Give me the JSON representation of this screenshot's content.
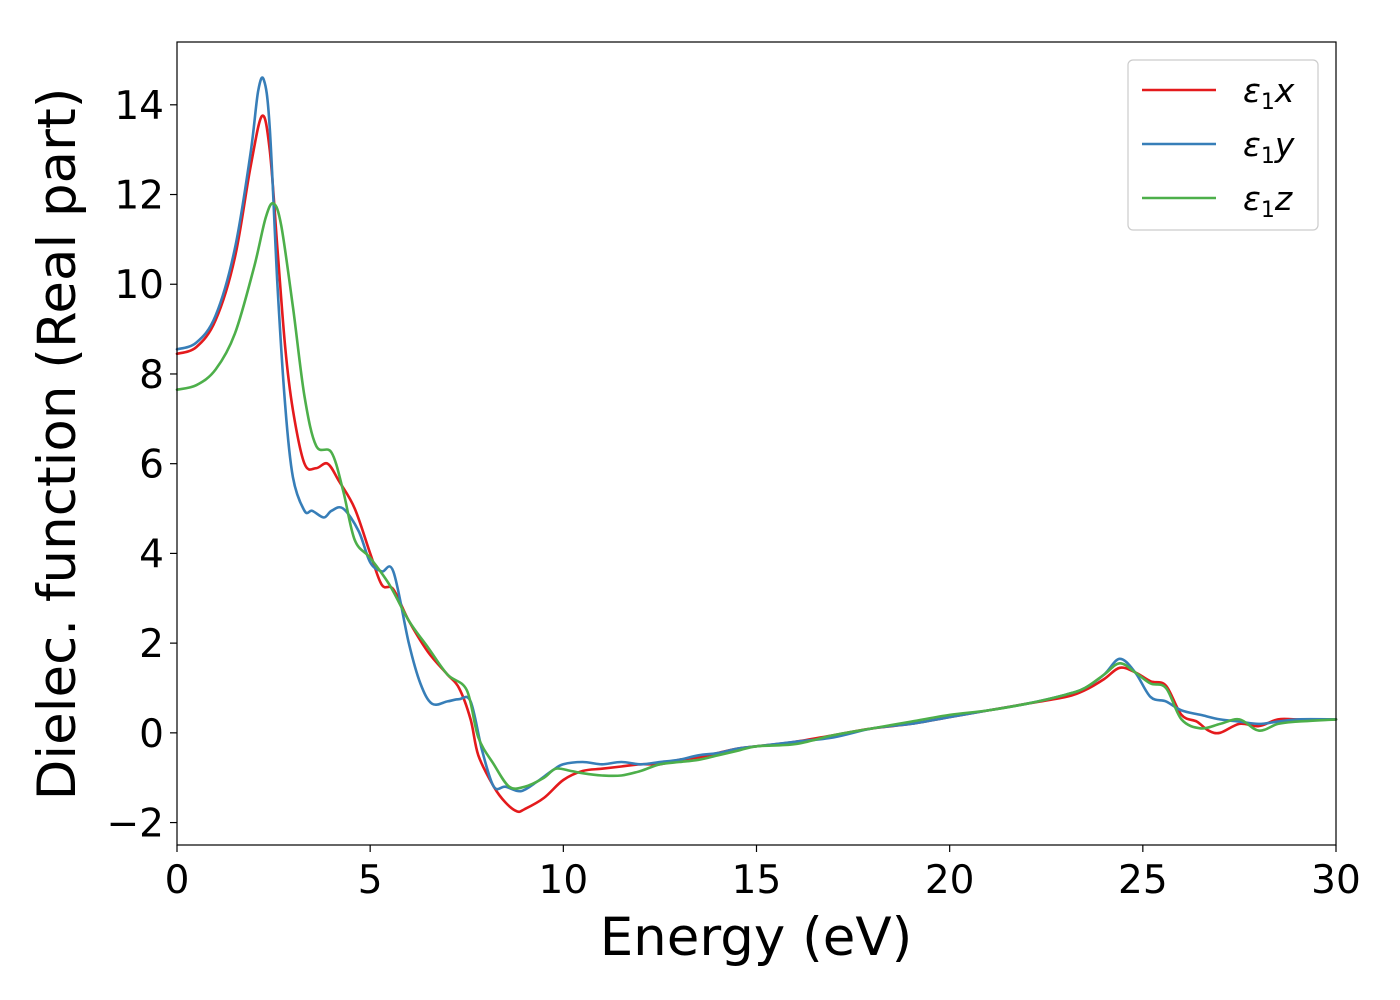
{
  "chart_data": {
    "type": "line",
    "xlabel": "Energy (eV)",
    "ylabel": "Dielec. function (Real part)",
    "xlim": [
      0,
      30
    ],
    "ylim": [
      -2.5,
      15.4
    ],
    "xticks": [
      0,
      5,
      10,
      15,
      20,
      25,
      30
    ],
    "xtick_labels": [
      "0",
      "5",
      "10",
      "15",
      "20",
      "25",
      "30"
    ],
    "yticks": [
      -2,
      0,
      2,
      4,
      6,
      8,
      10,
      12,
      14
    ],
    "ytick_labels": [
      "−2",
      "0",
      "2",
      "4",
      "6",
      "8",
      "10",
      "12",
      "14"
    ],
    "grid": false,
    "legend_position": "top-right",
    "series": [
      {
        "name": "ε₁x",
        "legend_base": "ε",
        "legend_sub": "1",
        "legend_suffix": "x",
        "color": "#e41a1c",
        "points": [
          [
            0,
            8.45
          ],
          [
            0.5,
            8.6
          ],
          [
            1.0,
            9.2
          ],
          [
            1.5,
            10.6
          ],
          [
            1.9,
            12.6
          ],
          [
            2.2,
            13.75
          ],
          [
            2.4,
            13.0
          ],
          [
            2.6,
            10.8
          ],
          [
            2.8,
            8.6
          ],
          [
            3.0,
            7.2
          ],
          [
            3.3,
            6.0
          ],
          [
            3.6,
            5.9
          ],
          [
            3.9,
            6.0
          ],
          [
            4.2,
            5.6
          ],
          [
            4.6,
            5.0
          ],
          [
            5.0,
            4.0
          ],
          [
            5.3,
            3.3
          ],
          [
            5.6,
            3.2
          ],
          [
            6.0,
            2.5
          ],
          [
            6.5,
            1.8
          ],
          [
            7.0,
            1.3
          ],
          [
            7.3,
            1.0
          ],
          [
            7.6,
            0.3
          ],
          [
            7.8,
            -0.5
          ],
          [
            8.2,
            -1.2
          ],
          [
            8.5,
            -1.55
          ],
          [
            8.8,
            -1.75
          ],
          [
            9.0,
            -1.7
          ],
          [
            9.5,
            -1.45
          ],
          [
            10.0,
            -1.05
          ],
          [
            10.5,
            -0.85
          ],
          [
            11.0,
            -0.8
          ],
          [
            11.5,
            -0.75
          ],
          [
            12.0,
            -0.7
          ],
          [
            12.5,
            -0.7
          ],
          [
            13.0,
            -0.6
          ],
          [
            13.5,
            -0.55
          ],
          [
            14.0,
            -0.45
          ],
          [
            14.5,
            -0.35
          ],
          [
            15.0,
            -0.3
          ],
          [
            16.0,
            -0.2
          ],
          [
            17.0,
            -0.05
          ],
          [
            18.0,
            0.1
          ],
          [
            19.0,
            0.2
          ],
          [
            20.0,
            0.35
          ],
          [
            21.0,
            0.5
          ],
          [
            22.0,
            0.65
          ],
          [
            23.0,
            0.8
          ],
          [
            23.5,
            0.95
          ],
          [
            24.0,
            1.2
          ],
          [
            24.4,
            1.45
          ],
          [
            24.8,
            1.35
          ],
          [
            25.2,
            1.15
          ],
          [
            25.6,
            1.05
          ],
          [
            26.0,
            0.4
          ],
          [
            26.4,
            0.25
          ],
          [
            26.7,
            0.05
          ],
          [
            27.0,
            0.0
          ],
          [
            27.5,
            0.2
          ],
          [
            28.0,
            0.15
          ],
          [
            28.5,
            0.3
          ],
          [
            29.0,
            0.3
          ],
          [
            30.0,
            0.3
          ]
        ]
      },
      {
        "name": "ε₁y",
        "legend_base": "ε",
        "legend_sub": "1",
        "legend_suffix": "y",
        "color": "#377eb8",
        "points": [
          [
            0,
            8.55
          ],
          [
            0.5,
            8.7
          ],
          [
            1.0,
            9.3
          ],
          [
            1.5,
            10.8
          ],
          [
            1.9,
            12.9
          ],
          [
            2.1,
            14.3
          ],
          [
            2.25,
            14.55
          ],
          [
            2.4,
            13.5
          ],
          [
            2.6,
            10.0
          ],
          [
            2.8,
            7.3
          ],
          [
            3.0,
            5.7
          ],
          [
            3.3,
            4.95
          ],
          [
            3.5,
            4.95
          ],
          [
            3.8,
            4.8
          ],
          [
            4.0,
            4.95
          ],
          [
            4.3,
            5.0
          ],
          [
            4.7,
            4.5
          ],
          [
            5.0,
            3.8
          ],
          [
            5.3,
            3.6
          ],
          [
            5.6,
            3.6
          ],
          [
            6.0,
            2.0
          ],
          [
            6.3,
            1.1
          ],
          [
            6.6,
            0.65
          ],
          [
            7.0,
            0.7
          ],
          [
            7.3,
            0.75
          ],
          [
            7.6,
            0.7
          ],
          [
            7.9,
            -0.4
          ],
          [
            8.2,
            -1.2
          ],
          [
            8.5,
            -1.2
          ],
          [
            8.9,
            -1.3
          ],
          [
            9.3,
            -1.1
          ],
          [
            9.7,
            -0.85
          ],
          [
            10.0,
            -0.7
          ],
          [
            10.5,
            -0.65
          ],
          [
            11.0,
            -0.7
          ],
          [
            11.5,
            -0.65
          ],
          [
            12.0,
            -0.7
          ],
          [
            12.5,
            -0.65
          ],
          [
            13.0,
            -0.6
          ],
          [
            13.5,
            -0.5
          ],
          [
            14.0,
            -0.45
          ],
          [
            14.5,
            -0.35
          ],
          [
            15.0,
            -0.3
          ],
          [
            16.0,
            -0.2
          ],
          [
            17.0,
            -0.1
          ],
          [
            18.0,
            0.1
          ],
          [
            19.0,
            0.2
          ],
          [
            20.0,
            0.35
          ],
          [
            21.0,
            0.5
          ],
          [
            22.0,
            0.65
          ],
          [
            23.0,
            0.85
          ],
          [
            23.5,
            1.0
          ],
          [
            24.0,
            1.3
          ],
          [
            24.4,
            1.65
          ],
          [
            24.8,
            1.35
          ],
          [
            25.2,
            0.8
          ],
          [
            25.6,
            0.7
          ],
          [
            26.0,
            0.5
          ],
          [
            26.5,
            0.4
          ],
          [
            27.0,
            0.3
          ],
          [
            27.5,
            0.25
          ],
          [
            28.0,
            0.2
          ],
          [
            28.5,
            0.25
          ],
          [
            29.0,
            0.3
          ],
          [
            30.0,
            0.3
          ]
        ]
      },
      {
        "name": "ε₁z",
        "legend_base": "ε",
        "legend_sub": "1",
        "legend_suffix": "z",
        "color": "#4daf4a",
        "points": [
          [
            0,
            7.65
          ],
          [
            0.5,
            7.75
          ],
          [
            1.0,
            8.1
          ],
          [
            1.5,
            8.9
          ],
          [
            2.0,
            10.4
          ],
          [
            2.3,
            11.5
          ],
          [
            2.5,
            11.8
          ],
          [
            2.7,
            11.3
          ],
          [
            3.0,
            9.5
          ],
          [
            3.3,
            7.5
          ],
          [
            3.6,
            6.4
          ],
          [
            4.0,
            6.25
          ],
          [
            4.3,
            5.4
          ],
          [
            4.6,
            4.3
          ],
          [
            5.0,
            3.9
          ],
          [
            5.5,
            3.3
          ],
          [
            6.0,
            2.5
          ],
          [
            6.5,
            1.9
          ],
          [
            7.0,
            1.3
          ],
          [
            7.5,
            0.95
          ],
          [
            7.8,
            -0.1
          ],
          [
            8.2,
            -0.7
          ],
          [
            8.6,
            -1.2
          ],
          [
            9.0,
            -1.2
          ],
          [
            9.5,
            -1.0
          ],
          [
            9.8,
            -0.8
          ],
          [
            10.2,
            -0.85
          ],
          [
            10.5,
            -0.9
          ],
          [
            11.0,
            -0.95
          ],
          [
            11.5,
            -0.95
          ],
          [
            12.0,
            -0.85
          ],
          [
            12.5,
            -0.7
          ],
          [
            13.0,
            -0.65
          ],
          [
            13.5,
            -0.6
          ],
          [
            14.0,
            -0.5
          ],
          [
            14.5,
            -0.4
          ],
          [
            15.0,
            -0.3
          ],
          [
            16.0,
            -0.25
          ],
          [
            17.0,
            -0.05
          ],
          [
            18.0,
            0.1
          ],
          [
            19.0,
            0.25
          ],
          [
            20.0,
            0.4
          ],
          [
            21.0,
            0.5
          ],
          [
            22.0,
            0.65
          ],
          [
            23.0,
            0.85
          ],
          [
            23.5,
            1.0
          ],
          [
            24.0,
            1.3
          ],
          [
            24.4,
            1.55
          ],
          [
            24.8,
            1.35
          ],
          [
            25.2,
            1.1
          ],
          [
            25.6,
            1.0
          ],
          [
            26.0,
            0.3
          ],
          [
            26.5,
            0.1
          ],
          [
            27.0,
            0.2
          ],
          [
            27.5,
            0.3
          ],
          [
            28.0,
            0.05
          ],
          [
            28.5,
            0.2
          ],
          [
            29.0,
            0.25
          ],
          [
            30.0,
            0.3
          ]
        ]
      }
    ]
  }
}
